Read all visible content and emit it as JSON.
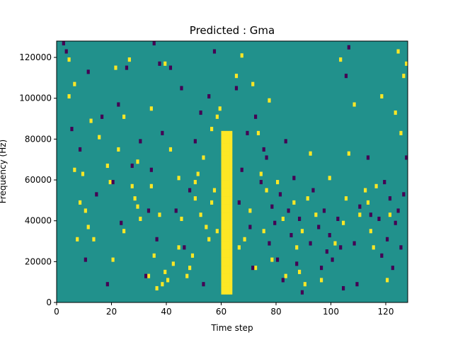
{
  "chart_data": {
    "type": "heatmap",
    "title": "Predicted : Gma",
    "xlabel": "Time step",
    "ylabel": "Frequency (Hz)",
    "xlim": [
      0,
      128
    ],
    "ylim": [
      0,
      128000
    ],
    "x_ticks": [
      "0",
      "20",
      "40",
      "60",
      "80",
      "100",
      "120"
    ],
    "y_ticks": [
      "0",
      "20000",
      "40000",
      "60000",
      "80000",
      "100000",
      "120000"
    ],
    "grid": false,
    "legend": "none",
    "colormap": {
      "background": "#21918c",
      "low": "#440154",
      "high": "#fde725"
    },
    "cell_value_meaning": {
      "low": 0.0,
      "background": 0.5,
      "high": 1.0
    },
    "frequency_bands": 64,
    "band_height_hz": 2000,
    "dense_region": {
      "x_range": [
        60,
        64
      ],
      "y_range": [
        4000,
        84000
      ],
      "value": "high"
    },
    "scattered_cells_high": [
      [
        4,
        118000
      ],
      [
        4,
        100000
      ],
      [
        6,
        106000
      ],
      [
        6,
        64000
      ],
      [
        7,
        30000
      ],
      [
        8,
        48000
      ],
      [
        9,
        62000
      ],
      [
        10,
        44000
      ],
      [
        11,
        36000
      ],
      [
        12,
        88000
      ],
      [
        13,
        30000
      ],
      [
        15,
        80000
      ],
      [
        18,
        66000
      ],
      [
        19,
        58000
      ],
      [
        20,
        20000
      ],
      [
        21,
        114000
      ],
      [
        22,
        74000
      ],
      [
        24,
        90000
      ],
      [
        24,
        34000
      ],
      [
        26,
        118000
      ],
      [
        27,
        56000
      ],
      [
        28,
        50000
      ],
      [
        29,
        46000
      ],
      [
        29,
        68000
      ],
      [
        30,
        40000
      ],
      [
        33,
        12000
      ],
      [
        34,
        56000
      ],
      [
        34,
        94000
      ],
      [
        35,
        22000
      ],
      [
        36,
        6000
      ],
      [
        37,
        42000
      ],
      [
        38,
        8000
      ],
      [
        39,
        14000
      ],
      [
        39,
        116000
      ],
      [
        40,
        10000
      ],
      [
        41,
        74000
      ],
      [
        42,
        18000
      ],
      [
        44,
        26000
      ],
      [
        44,
        60000
      ],
      [
        45,
        40000
      ],
      [
        47,
        12000
      ],
      [
        48,
        16000
      ],
      [
        49,
        22000
      ],
      [
        50,
        50000
      ],
      [
        50,
        58000
      ],
      [
        51,
        62000
      ],
      [
        52,
        42000
      ],
      [
        53,
        70000
      ],
      [
        54,
        36000
      ],
      [
        55,
        30000
      ],
      [
        56,
        48000
      ],
      [
        56,
        84000
      ],
      [
        57,
        54000
      ],
      [
        58,
        34000
      ],
      [
        59,
        94000
      ],
      [
        60,
        64000
      ],
      [
        58,
        90000
      ],
      [
        65,
        110000
      ],
      [
        66,
        26000
      ],
      [
        67,
        120000
      ],
      [
        68,
        30000
      ],
      [
        70,
        44000
      ],
      [
        71,
        106000
      ],
      [
        72,
        16000
      ],
      [
        73,
        82000
      ],
      [
        74,
        62000
      ],
      [
        75,
        34000
      ],
      [
        76,
        54000
      ],
      [
        77,
        98000
      ],
      [
        78,
        20000
      ],
      [
        80,
        58000
      ],
      [
        82,
        40000
      ],
      [
        83,
        12000
      ],
      [
        86,
        48000
      ],
      [
        87,
        26000
      ],
      [
        88,
        14000
      ],
      [
        89,
        34000
      ],
      [
        90,
        8000
      ],
      [
        91,
        50000
      ],
      [
        92,
        72000
      ],
      [
        94,
        42000
      ],
      [
        96,
        10000
      ],
      [
        99,
        60000
      ],
      [
        101,
        28000
      ],
      [
        103,
        118000
      ],
      [
        104,
        38000
      ],
      [
        105,
        50000
      ],
      [
        106,
        72000
      ],
      [
        108,
        96000
      ],
      [
        110,
        42000
      ],
      [
        112,
        54000
      ],
      [
        113,
        48000
      ],
      [
        114,
        34000
      ],
      [
        115,
        26000
      ],
      [
        116,
        56000
      ],
      [
        118,
        100000
      ],
      [
        120,
        10000
      ],
      [
        121,
        42000
      ],
      [
        123,
        92000
      ],
      [
        124,
        122000
      ],
      [
        125,
        82000
      ],
      [
        126,
        110000
      ],
      [
        127,
        116000
      ]
    ],
    "scattered_cells_low": [
      [
        2,
        126000
      ],
      [
        3,
        122000
      ],
      [
        5,
        84000
      ],
      [
        8,
        74000
      ],
      [
        10,
        20000
      ],
      [
        11,
        112000
      ],
      [
        14,
        52000
      ],
      [
        16,
        90000
      ],
      [
        18,
        8000
      ],
      [
        20,
        58000
      ],
      [
        22,
        96000
      ],
      [
        23,
        38000
      ],
      [
        25,
        114000
      ],
      [
        27,
        66000
      ],
      [
        30,
        78000
      ],
      [
        32,
        12000
      ],
      [
        33,
        44000
      ],
      [
        34,
        64000
      ],
      [
        35,
        126000
      ],
      [
        36,
        30000
      ],
      [
        37,
        116000
      ],
      [
        38,
        82000
      ],
      [
        41,
        114000
      ],
      [
        43,
        44000
      ],
      [
        45,
        104000
      ],
      [
        46,
        26000
      ],
      [
        48,
        54000
      ],
      [
        50,
        78000
      ],
      [
        52,
        92000
      ],
      [
        53,
        8000
      ],
      [
        55,
        100000
      ],
      [
        57,
        122000
      ],
      [
        65,
        104000
      ],
      [
        66,
        48000
      ],
      [
        67,
        64000
      ],
      [
        69,
        82000
      ],
      [
        70,
        36000
      ],
      [
        71,
        16000
      ],
      [
        72,
        90000
      ],
      [
        74,
        58000
      ],
      [
        75,
        74000
      ],
      [
        76,
        70000
      ],
      [
        77,
        28000
      ],
      [
        78,
        46000
      ],
      [
        79,
        38000
      ],
      [
        80,
        20000
      ],
      [
        81,
        52000
      ],
      [
        82,
        10000
      ],
      [
        83,
        78000
      ],
      [
        84,
        44000
      ],
      [
        85,
        32000
      ],
      [
        86,
        60000
      ],
      [
        87,
        18000
      ],
      [
        88,
        40000
      ],
      [
        89,
        4000
      ],
      [
        92,
        28000
      ],
      [
        93,
        54000
      ],
      [
        95,
        36000
      ],
      [
        96,
        16000
      ],
      [
        97,
        44000
      ],
      [
        98,
        24000
      ],
      [
        99,
        32000
      ],
      [
        100,
        20000
      ],
      [
        102,
        40000
      ],
      [
        103,
        26000
      ],
      [
        104,
        6000
      ],
      [
        105,
        110000
      ],
      [
        106,
        124000
      ],
      [
        108,
        28000
      ],
      [
        109,
        8000
      ],
      [
        110,
        46000
      ],
      [
        113,
        70000
      ],
      [
        114,
        42000
      ],
      [
        117,
        40000
      ],
      [
        118,
        22000
      ],
      [
        119,
        58000
      ],
      [
        120,
        30000
      ],
      [
        121,
        50000
      ],
      [
        122,
        16000
      ],
      [
        123,
        38000
      ],
      [
        124,
        44000
      ],
      [
        125,
        26000
      ],
      [
        126,
        52000
      ],
      [
        127,
        70000
      ]
    ]
  }
}
